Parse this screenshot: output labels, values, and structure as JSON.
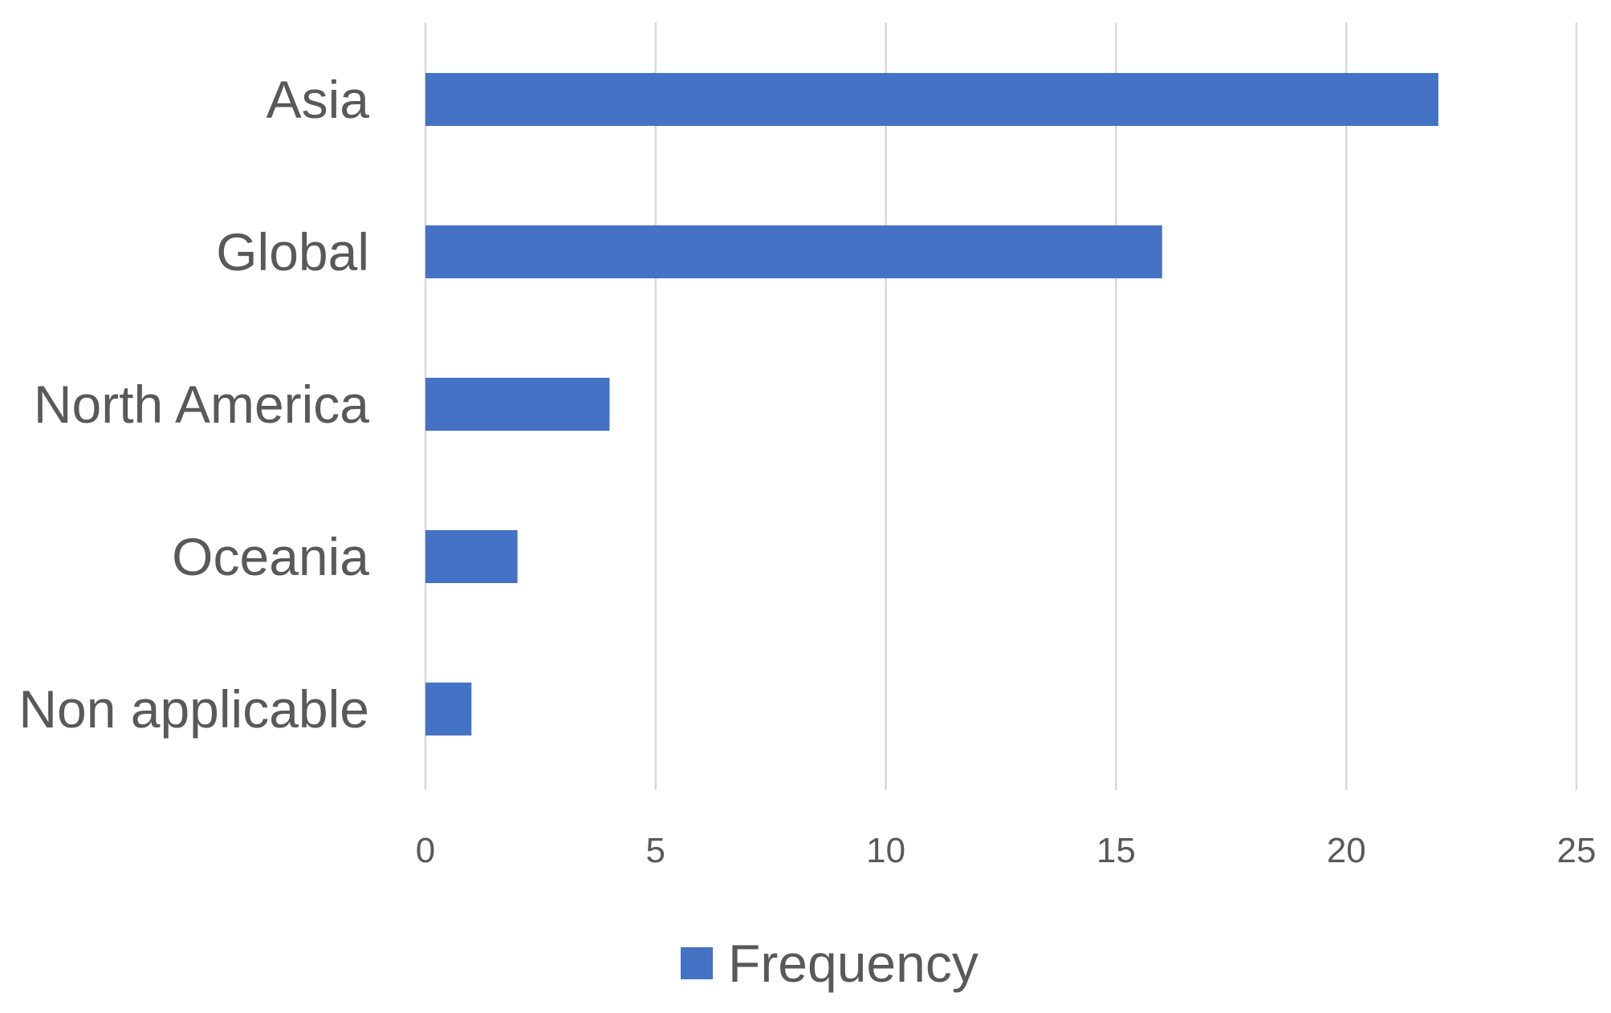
{
  "chart_data": {
    "type": "bar",
    "orientation": "horizontal",
    "categories": [
      "Asia",
      "Global",
      "North America",
      "Oceania",
      "Non applicable"
    ],
    "series": [
      {
        "name": "Frequency",
        "values": [
          22,
          16,
          4,
          2,
          1
        ],
        "color": "#4472c4"
      }
    ],
    "xlim": [
      0,
      25
    ],
    "xticks": [
      "0",
      "5",
      "10",
      "15",
      "20",
      "25"
    ],
    "grid": true,
    "legend": "bottom"
  }
}
